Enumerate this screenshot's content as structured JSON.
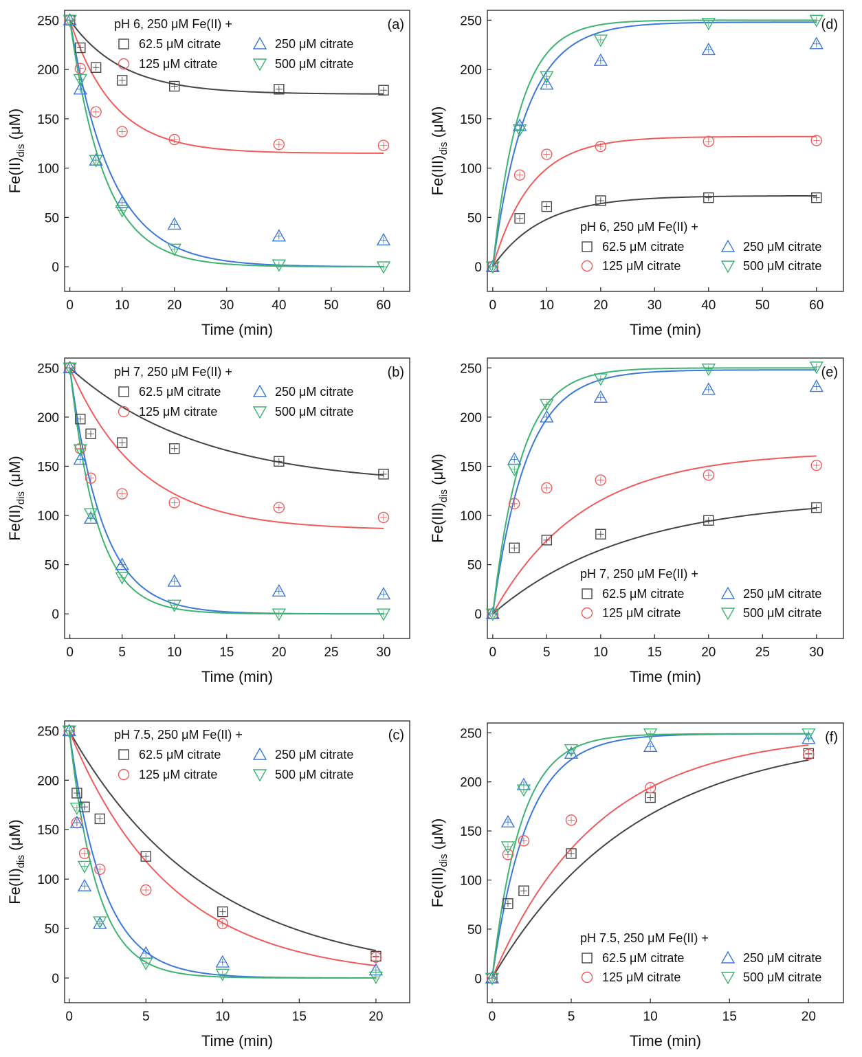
{
  "figure": {
    "background": "#ffffff",
    "series_colors": {
      "62.5 µM citrate": "#444444",
      "125 µM citrate": "#ef5b5b",
      "250 µM citrate": "#3b78d8",
      "500 µM citrate": "#3cb371"
    },
    "marker_shapes": {
      "62.5 µM citrate": "square",
      "125 µM citrate": "circle",
      "250 µM citrate": "triangle-up",
      "500 µM citrate": "triangle-down"
    }
  },
  "chart_data": [
    {
      "id": "a",
      "type": "scatter",
      "panel_label": "(a)",
      "title": "pH 6, 250 μM Fe(II) +",
      "xlabel": "Time (min)",
      "ylabel": "Fe(II)dis (μM)",
      "ylabel_main": "Fe(II)",
      "ylabel_sub": "dis",
      "ylabel_unit": " (μM)",
      "xlim": [
        -1,
        65
      ],
      "ylim": [
        -25,
        260
      ],
      "xticks": [
        0,
        10,
        20,
        30,
        40,
        50,
        60
      ],
      "yticks": [
        0,
        50,
        100,
        150,
        200,
        250
      ],
      "legend_position": "top",
      "series": [
        {
          "name": "62.5 μM citrate",
          "color": "#444444",
          "marker": "square",
          "x": [
            0,
            2,
            5,
            10,
            20,
            40,
            60
          ],
          "y": [
            250,
            222,
            202,
            189,
            183,
            180,
            179
          ],
          "fit": {
            "y0": 250,
            "yinf": 175,
            "k": 0.1
          }
        },
        {
          "name": "125 μM citrate",
          "color": "#ef5b5b",
          "marker": "circle",
          "x": [
            0,
            2,
            5,
            10,
            20,
            40,
            60
          ],
          "y": [
            250,
            201,
            157,
            137,
            129,
            124,
            123
          ],
          "fit": {
            "y0": 250,
            "yinf": 115,
            "k": 0.12
          }
        },
        {
          "name": "250 μM citrate",
          "color": "#3b78d8",
          "marker": "triangle-up",
          "x": [
            0,
            2,
            5,
            10,
            20,
            40,
            60
          ],
          "y": [
            250,
            180,
            108,
            65,
            43,
            31,
            27
          ],
          "fit": {
            "y0": 250,
            "yinf": 0,
            "k": 0.125
          }
        },
        {
          "name": "500 μM citrate",
          "color": "#3cb371",
          "marker": "triangle-down",
          "x": [
            0,
            2,
            5,
            10,
            20,
            40,
            60
          ],
          "y": [
            250,
            190,
            108,
            57,
            18,
            2,
            0
          ],
          "fit": {
            "y0": 250,
            "yinf": 0,
            "k": 0.15
          }
        }
      ]
    },
    {
      "id": "b",
      "type": "scatter",
      "panel_label": "(b)",
      "title": "pH 7, 250 μM Fe(II) +",
      "xlabel": "Time (min)",
      "ylabel": "Fe(II)dis (μM)",
      "ylabel_main": "Fe(II)",
      "ylabel_sub": "dis",
      "ylabel_unit": " (μM)",
      "xlim": [
        -0.5,
        32.5
      ],
      "ylim": [
        -25,
        260
      ],
      "xticks": [
        0,
        5,
        10,
        15,
        20,
        25,
        30
      ],
      "yticks": [
        0,
        50,
        100,
        150,
        200,
        250
      ],
      "legend_position": "top",
      "series": [
        {
          "name": "62.5 μM citrate",
          "color": "#444444",
          "marker": "square",
          "x": [
            0,
            1,
            2,
            5,
            10,
            20,
            30
          ],
          "y": [
            250,
            198,
            183,
            174,
            168,
            155,
            142
          ],
          "fit": {
            "y0": 250,
            "yinf": 130,
            "k": 0.08
          }
        },
        {
          "name": "125 μM citrate",
          "color": "#ef5b5b",
          "marker": "circle",
          "x": [
            0,
            1,
            2,
            5,
            10,
            20,
            30
          ],
          "y": [
            250,
            168,
            138,
            122,
            113,
            108,
            98
          ],
          "fit": {
            "y0": 250,
            "yinf": 85,
            "k": 0.15
          }
        },
        {
          "name": "250 μM citrate",
          "color": "#3b78d8",
          "marker": "triangle-up",
          "x": [
            0,
            1,
            2,
            5,
            10,
            20,
            30
          ],
          "y": [
            250,
            157,
            97,
            50,
            33,
            23,
            20
          ],
          "fit": {
            "y0": 250,
            "yinf": 0,
            "k": 0.32
          }
        },
        {
          "name": "500 μM citrate",
          "color": "#3cb371",
          "marker": "triangle-down",
          "x": [
            0,
            1,
            2,
            5,
            10,
            20,
            30
          ],
          "y": [
            250,
            167,
            102,
            37,
            9,
            0,
            0
          ],
          "fit": {
            "y0": 250,
            "yinf": 0,
            "k": 0.38
          }
        }
      ]
    },
    {
      "id": "c",
      "type": "scatter",
      "panel_label": "(c)",
      "title": "pH 7.5, 250 μM Fe(II) +",
      "xlabel": "Time (min)",
      "ylabel": "Fe(II)dis (μM)",
      "ylabel_main": "Fe(II)",
      "ylabel_sub": "dis",
      "ylabel_unit": " (μM)",
      "xlim": [
        -0.3,
        22.2
      ],
      "ylim": [
        -25,
        260
      ],
      "xticks": [
        0,
        5,
        10,
        15,
        20
      ],
      "yticks": [
        0,
        50,
        100,
        150,
        200,
        250
      ],
      "legend_position": "top",
      "series": [
        {
          "name": "62.5 μM citrate",
          "color": "#444444",
          "marker": "square",
          "x": [
            0,
            0.5,
            1,
            2,
            5,
            10,
            20
          ],
          "y": [
            250,
            187,
            173,
            161,
            123,
            67,
            22
          ],
          "fit": {
            "y0": 250,
            "yinf": 0,
            "k": 0.11
          }
        },
        {
          "name": "125 μM citrate",
          "color": "#ef5b5b",
          "marker": "circle",
          "x": [
            0,
            0.5,
            1,
            2,
            5,
            10,
            20
          ],
          "y": [
            250,
            157,
            126,
            110,
            89,
            55,
            21
          ],
          "fit": {
            "y0": 250,
            "yinf": 0,
            "k": 0.15
          }
        },
        {
          "name": "250 μM citrate",
          "color": "#3b78d8",
          "marker": "triangle-up",
          "x": [
            0,
            0.5,
            1,
            2,
            5,
            10,
            20
          ],
          "y": [
            250,
            157,
            93,
            55,
            25,
            16,
            8
          ],
          "fit": {
            "y0": 250,
            "yinf": 0,
            "k": 0.45
          }
        },
        {
          "name": "500 μM citrate",
          "color": "#3cb371",
          "marker": "triangle-down",
          "x": [
            0,
            0.5,
            1,
            2,
            5,
            10,
            20
          ],
          "y": [
            250,
            172,
            113,
            57,
            15,
            4,
            1
          ],
          "fit": {
            "y0": 250,
            "yinf": 0,
            "k": 0.55
          }
        }
      ]
    },
    {
      "id": "d",
      "type": "scatter",
      "panel_label": "(d)",
      "title": "pH 6, 250 μM Fe(II) +",
      "xlabel": "Time (min)",
      "ylabel": "Fe(III)dis (μM)",
      "ylabel_main": "Fe(III)",
      "ylabel_sub": "dis",
      "ylabel_unit": " (μM)",
      "xlim": [
        -1,
        65
      ],
      "ylim": [
        -25,
        260
      ],
      "xticks": [
        0,
        10,
        20,
        30,
        40,
        50,
        60
      ],
      "yticks": [
        0,
        50,
        100,
        150,
        200,
        250
      ],
      "legend_position": "bottom-right",
      "series": [
        {
          "name": "62.5 μM citrate",
          "color": "#444444",
          "marker": "square",
          "x": [
            0,
            5,
            10,
            20,
            40,
            60
          ],
          "y": [
            0,
            49,
            61,
            67,
            70,
            70
          ],
          "fit": {
            "y0": 0,
            "yinf": 72,
            "k": 0.11
          }
        },
        {
          "name": "125 μM citrate",
          "color": "#ef5b5b",
          "marker": "circle",
          "x": [
            0,
            5,
            10,
            20,
            40,
            60
          ],
          "y": [
            0,
            93,
            114,
            122,
            127,
            128
          ],
          "fit": {
            "y0": 0,
            "yinf": 132,
            "k": 0.14
          }
        },
        {
          "name": "250 μM citrate",
          "color": "#3b78d8",
          "marker": "triangle-up",
          "x": [
            0,
            5,
            10,
            20,
            40,
            60
          ],
          "y": [
            0,
            143,
            185,
            209,
            220,
            226
          ],
          "fit": {
            "y0": 0,
            "yinf": 248,
            "k": 0.16
          }
        },
        {
          "name": "500 μM citrate",
          "color": "#3cb371",
          "marker": "triangle-down",
          "x": [
            0,
            5,
            10,
            20,
            40,
            60
          ],
          "y": [
            0,
            139,
            193,
            230,
            247,
            250
          ],
          "fit": {
            "y0": 0,
            "yinf": 250,
            "k": 0.2
          }
        }
      ]
    },
    {
      "id": "e",
      "type": "scatter",
      "panel_label": "(e)",
      "title": "pH 7, 250 μM Fe(II) +",
      "xlabel": "Time (min)",
      "ylabel": "Fe(III)dis (μM)",
      "ylabel_main": "Fe(III)",
      "ylabel_sub": "dis",
      "ylabel_unit": " (μM)",
      "xlim": [
        -0.5,
        32.5
      ],
      "ylim": [
        -25,
        260
      ],
      "xticks": [
        0,
        5,
        10,
        15,
        20,
        25,
        30
      ],
      "yticks": [
        0,
        50,
        100,
        150,
        200,
        250
      ],
      "legend_position": "bottom-right",
      "series": [
        {
          "name": "62.5 μM citrate",
          "color": "#444444",
          "marker": "square",
          "x": [
            0,
            2,
            5,
            10,
            20,
            30
          ],
          "y": [
            0,
            67,
            75,
            81,
            95,
            108
          ],
          "fit": {
            "y0": 0,
            "yinf": 118,
            "k": 0.08
          }
        },
        {
          "name": "125 μM citrate",
          "color": "#ef5b5b",
          "marker": "circle",
          "x": [
            0,
            2,
            5,
            10,
            20,
            30
          ],
          "y": [
            0,
            112,
            128,
            136,
            141,
            151
          ],
          "fit": {
            "y0": 0,
            "yinf": 165,
            "k": 0.12
          }
        },
        {
          "name": "250 μM citrate",
          "color": "#3b78d8",
          "marker": "triangle-up",
          "x": [
            0,
            2,
            5,
            10,
            20,
            30
          ],
          "y": [
            0,
            157,
            200,
            220,
            228,
            231
          ],
          "fit": {
            "y0": 0,
            "yinf": 248,
            "k": 0.32
          }
        },
        {
          "name": "500 μM citrate",
          "color": "#3cb371",
          "marker": "triangle-down",
          "x": [
            0,
            2,
            5,
            10,
            20,
            30
          ],
          "y": [
            0,
            147,
            213,
            239,
            249,
            251
          ],
          "fit": {
            "y0": 0,
            "yinf": 250,
            "k": 0.38
          }
        }
      ]
    },
    {
      "id": "f",
      "type": "scatter",
      "panel_label": "(f)",
      "title": "pH 7.5, 250 μM Fe(II) +",
      "xlabel": "Time (min)",
      "ylabel": "Fe(III)dis (μM)",
      "ylabel_main": "Fe(III)",
      "ylabel_sub": "dis",
      "ylabel_unit": " (μM)",
      "xlim": [
        -0.3,
        22.2
      ],
      "ylim": [
        -25,
        260
      ],
      "xticks": [
        0,
        5,
        10,
        15,
        20
      ],
      "yticks": [
        0,
        50,
        100,
        150,
        200,
        250
      ],
      "legend_position": "bottom-right",
      "series": [
        {
          "name": "62.5 μM citrate",
          "color": "#444444",
          "marker": "square",
          "x": [
            0,
            1,
            2,
            5,
            10,
            20
          ],
          "y": [
            0,
            76,
            89,
            127,
            184,
            229
          ],
          "fit": {
            "y0": 0,
            "yinf": 250,
            "k": 0.11
          }
        },
        {
          "name": "125 μM citrate",
          "color": "#ef5b5b",
          "marker": "circle",
          "x": [
            0,
            1,
            2,
            5,
            10,
            20
          ],
          "y": [
            0,
            126,
            140,
            161,
            194,
            228
          ],
          "fit": {
            "y0": 0,
            "yinf": 250,
            "k": 0.15
          }
        },
        {
          "name": "250 μM citrate",
          "color": "#3b78d8",
          "marker": "triangle-up",
          "x": [
            0,
            1,
            2,
            5,
            10,
            20
          ],
          "y": [
            0,
            159,
            197,
            229,
            236,
            244
          ],
          "fit": {
            "y0": 0,
            "yinf": 249,
            "k": 0.45
          }
        },
        {
          "name": "500 μM citrate",
          "color": "#3cb371",
          "marker": "triangle-down",
          "x": [
            0,
            1,
            2,
            5,
            10,
            20
          ],
          "y": [
            0,
            134,
            192,
            233,
            249,
            249
          ],
          "fit": {
            "y0": 0,
            "yinf": 249,
            "k": 0.55
          }
        }
      ]
    }
  ]
}
